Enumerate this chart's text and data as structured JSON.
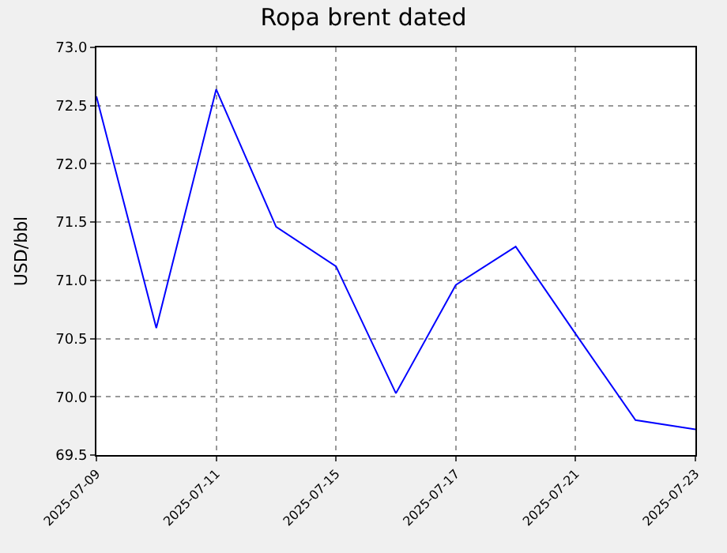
{
  "chart_data": {
    "type": "line",
    "title": "Ropa brent dated",
    "ylabel": "USD/bbl",
    "categories": [
      "2025-07-09",
      null,
      "2025-07-11",
      null,
      "2025-07-15",
      null,
      "2025-07-17",
      null,
      "2025-07-21",
      null,
      "2025-07-23"
    ],
    "series": [
      {
        "color": "#0000ff",
        "values": [
          72.58,
          70.59,
          72.64,
          71.46,
          71.12,
          70.03,
          70.96,
          71.29,
          70.54,
          69.8,
          69.72
        ]
      }
    ],
    "ylim": [
      69.5,
      73.0
    ],
    "yticks": [
      {
        "value": 69.5,
        "label": "69.5"
      },
      {
        "value": 70.0,
        "label": "70.0"
      },
      {
        "value": 70.5,
        "label": "70.5"
      },
      {
        "value": 71.0,
        "label": "71.0"
      },
      {
        "value": 71.5,
        "label": "71.5"
      },
      {
        "value": 72.0,
        "label": "72.0"
      },
      {
        "value": 72.5,
        "label": "72.5"
      },
      {
        "value": 73.0,
        "label": "73.0"
      }
    ],
    "grid": true,
    "line_style": "solid",
    "marker": "none",
    "legend": false
  }
}
